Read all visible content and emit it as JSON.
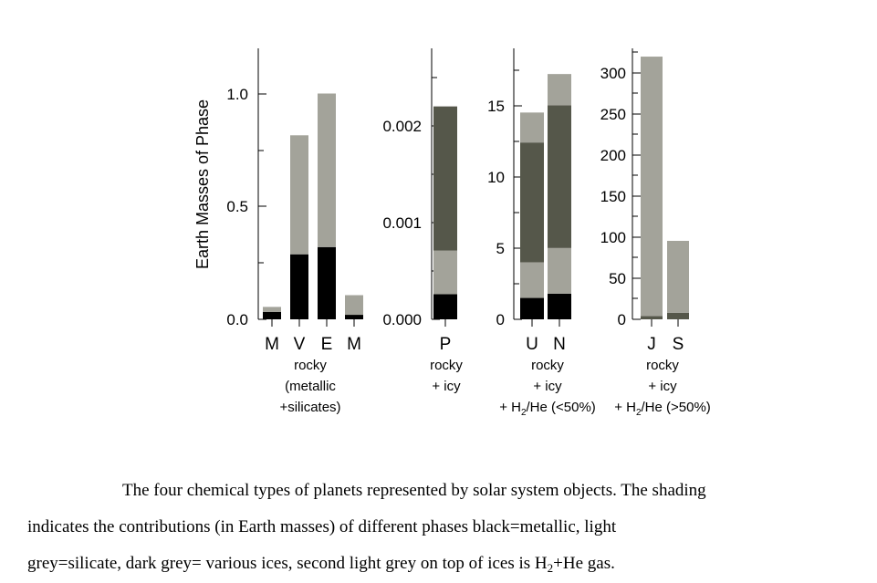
{
  "colors": {
    "metallic": "#000000",
    "silicate": "#a3a39a",
    "ices": "#55574a",
    "gas": "#a3a39a",
    "axis": "#000000"
  },
  "chart_data": [
    {
      "type": "bar",
      "stacked": true,
      "panel": "rocky",
      "ylabel": "Earth Masses of Phase",
      "ylim": [
        0,
        1.2
      ],
      "yticks": [
        "0.0",
        "0.5",
        "1.0"
      ],
      "categories": [
        "M",
        "V",
        "E",
        "M"
      ],
      "series": [
        {
          "phase": "metallic",
          "values": [
            0.033,
            0.288,
            0.32,
            0.02
          ]
        },
        {
          "phase": "silicate",
          "values": [
            0.022,
            0.527,
            0.68,
            0.087
          ]
        }
      ],
      "group_label": [
        "rocky",
        "(metallic",
        "+silicates)"
      ]
    },
    {
      "type": "bar",
      "stacked": true,
      "panel": "rocky + icy",
      "ylim": [
        0,
        0.0028
      ],
      "yticks": [
        "0.000",
        "0.001",
        "0.002"
      ],
      "categories": [
        "P"
      ],
      "series": [
        {
          "phase": "metallic",
          "values": [
            0.00026
          ]
        },
        {
          "phase": "silicate",
          "values": [
            0.00045
          ]
        },
        {
          "phase": "ices",
          "values": [
            0.00149
          ]
        }
      ],
      "group_label": [
        "rocky",
        "+ icy"
      ]
    },
    {
      "type": "bar",
      "stacked": true,
      "panel": "rocky + icy + H2/He (<50%)",
      "ylim": [
        0,
        19
      ],
      "yticks": [
        "0",
        "5",
        "10",
        "15"
      ],
      "categories": [
        "U",
        "N"
      ],
      "series": [
        {
          "phase": "metallic",
          "values": [
            1.5,
            1.8
          ]
        },
        {
          "phase": "silicate",
          "values": [
            2.5,
            3.2
          ]
        },
        {
          "phase": "ices",
          "values": [
            8.4,
            10.0
          ]
        },
        {
          "phase": "gas",
          "values": [
            2.1,
            2.2
          ]
        }
      ],
      "group_label": [
        "rocky",
        "+ icy",
        "+ H",
        "2",
        "/He (<50%)"
      ]
    },
    {
      "type": "bar",
      "stacked": true,
      "panel": "rocky + icy + H2/He (>50%)",
      "ylim": [
        0,
        328
      ],
      "yticks": [
        "0",
        "50",
        "100",
        "150",
        "200",
        "250",
        "300"
      ],
      "categories": [
        "J",
        "S"
      ],
      "series": [
        {
          "phase": "ices",
          "values": [
            4,
            8
          ]
        },
        {
          "phase": "gas",
          "values": [
            314,
            87
          ]
        }
      ],
      "group_label": [
        "rocky",
        "+ icy",
        "+ H",
        "2",
        "/He (>50%)"
      ]
    }
  ],
  "caption": {
    "line1": "The four chemical types of planets represented by solar system objects. The shading",
    "line2": "indicates the contributions (in Earth masses) of different phases black=metallic, light",
    "line3_pre": "grey=silicate, dark grey= various ices, second light grey on top of ices is H",
    "line3_sub": "2",
    "line3_post": "+He gas."
  }
}
